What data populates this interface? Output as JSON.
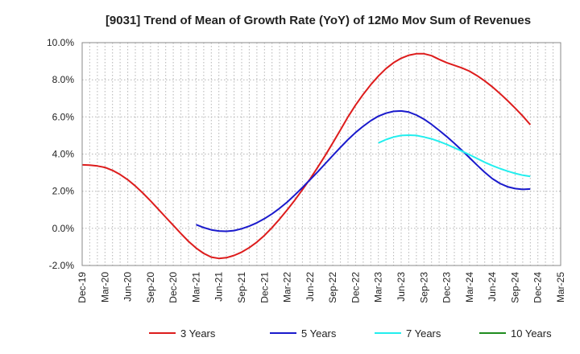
{
  "chart_data": {
    "type": "line",
    "title": "[9031]  Trend of Mean of Growth Rate (YoY) of 12Mo Mov Sum of Revenues",
    "xlabel": "",
    "ylabel": "",
    "ylim": [
      -2.0,
      10.0
    ],
    "y_ticks": [
      "-2.0%",
      "0.0%",
      "2.0%",
      "4.0%",
      "6.0%",
      "8.0%",
      "10.0%"
    ],
    "y_tick_values": [
      -2,
      0,
      2,
      4,
      6,
      8,
      10
    ],
    "x_ticks": [
      "Dec-19",
      "Mar-20",
      "Jun-20",
      "Sep-20",
      "Dec-20",
      "Mar-21",
      "Jun-21",
      "Sep-21",
      "Dec-21",
      "Mar-22",
      "Jun-22",
      "Sep-22",
      "Dec-22",
      "Mar-23",
      "Jun-23",
      "Sep-23",
      "Dec-23",
      "Mar-24",
      "Jun-24",
      "Sep-24",
      "Dec-24",
      "Mar-25"
    ],
    "grid": true,
    "legend_position": "bottom",
    "series": [
      {
        "name": "3 Years",
        "color": "#dd1c1c",
        "start_index": 0,
        "values": [
          3.42,
          3.4,
          3.36,
          3.28,
          3.12,
          2.9,
          2.62,
          2.28,
          1.9,
          1.48,
          1.04,
          0.6,
          0.16,
          -0.28,
          -0.7,
          -1.06,
          -1.35,
          -1.55,
          -1.62,
          -1.58,
          -1.46,
          -1.28,
          -1.04,
          -0.74,
          -0.38,
          0.04,
          0.5,
          1.0,
          1.52,
          2.08,
          2.66,
          3.28,
          3.92,
          4.6,
          5.3,
          6.0,
          6.64,
          7.22,
          7.74,
          8.2,
          8.6,
          8.92,
          9.16,
          9.32,
          9.4,
          9.4,
          9.3,
          9.1,
          8.92,
          8.78,
          8.64,
          8.46,
          8.22,
          7.94,
          7.62,
          7.26,
          6.88,
          6.48,
          6.05,
          5.58
        ]
      },
      {
        "name": "5 Years",
        "color": "#1a1acc",
        "start_index": 15,
        "values": [
          0.2,
          0.04,
          -0.08,
          -0.14,
          -0.16,
          -0.12,
          -0.02,
          0.12,
          0.3,
          0.52,
          0.78,
          1.08,
          1.42,
          1.8,
          2.2,
          2.62,
          3.04,
          3.48,
          3.92,
          4.36,
          4.78,
          5.16,
          5.5,
          5.8,
          6.04,
          6.2,
          6.3,
          6.32,
          6.26,
          6.1,
          5.88,
          5.6,
          5.28,
          4.94,
          4.58,
          4.2,
          3.8,
          3.4,
          3.02,
          2.68,
          2.42,
          2.24,
          2.14,
          2.1,
          2.12
        ]
      },
      {
        "name": "7 Years",
        "color": "#22eeee",
        "start_index": 39,
        "values": [
          4.6,
          4.78,
          4.92,
          5.0,
          5.02,
          5.0,
          4.92,
          4.82,
          4.68,
          4.52,
          4.34,
          4.16,
          3.96,
          3.76,
          3.56,
          3.38,
          3.22,
          3.08,
          2.96,
          2.86,
          2.8
        ]
      },
      {
        "name": "10 Years",
        "color": "#1e8c1e",
        "start_index": 0,
        "values": []
      }
    ]
  }
}
